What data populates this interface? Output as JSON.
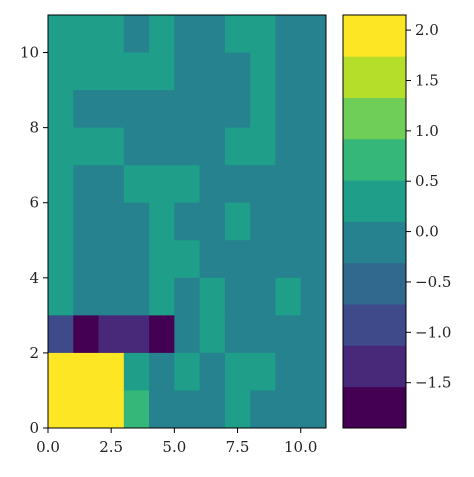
{
  "chart_data": {
    "type": "heatmap",
    "title": "",
    "xlabel": "",
    "ylabel": "",
    "x_range": [
      0,
      11
    ],
    "y_range": [
      0,
      11
    ],
    "x_ticks": [
      0.0,
      2.5,
      5.0,
      7.5,
      10.0
    ],
    "x_tick_labels": [
      "0.0",
      "2.5",
      "5.0",
      "7.5",
      "10.0"
    ],
    "y_ticks": [
      0,
      2,
      4,
      6,
      8,
      10
    ],
    "y_tick_labels": [
      "0",
      "2",
      "4",
      "6",
      "8",
      "10"
    ],
    "colorbar": {
      "min": -1.95,
      "max": 2.15,
      "bin_edges": [
        -1.95,
        -1.54,
        -1.13,
        -0.72,
        -0.31,
        0.1,
        0.51,
        0.92,
        1.33,
        1.74,
        2.15
      ],
      "bin_colors": [
        "#440154",
        "#482878",
        "#3e4a89",
        "#31688e",
        "#26828e",
        "#1f9e89",
        "#35b779",
        "#6ece58",
        "#b5de2b",
        "#fde725"
      ],
      "ticks": [
        2.0,
        1.5,
        1.0,
        0.5,
        0.0,
        -0.5,
        -1.0,
        -1.5
      ],
      "tick_labels": [
        "2.0",
        "1.5",
        "1.0",
        "0.5",
        "0.0",
        "−0.5",
        "−1.0",
        "−1.5"
      ]
    },
    "grid": false,
    "rows_top_to_bottom": [
      [
        0.3,
        0.3,
        0.3,
        0.0,
        0.3,
        0.0,
        0.0,
        0.3,
        0.3,
        0.0,
        0.0
      ],
      [
        0.3,
        0.3,
        0.3,
        0.3,
        0.3,
        0.0,
        0.0,
        0.0,
        0.3,
        0.0,
        0.0
      ],
      [
        0.3,
        0.0,
        0.0,
        0.0,
        0.0,
        0.0,
        0.0,
        0.0,
        0.3,
        0.0,
        0.0
      ],
      [
        0.3,
        0.3,
        0.3,
        0.0,
        0.0,
        0.0,
        0.0,
        0.3,
        0.3,
        0.0,
        0.0
      ],
      [
        0.3,
        0.0,
        0.0,
        0.3,
        0.3,
        0.3,
        0.0,
        0.0,
        0.0,
        0.0,
        0.0
      ],
      [
        0.3,
        0.0,
        0.0,
        0.0,
        0.3,
        0.0,
        0.0,
        0.3,
        0.0,
        0.0,
        0.0
      ],
      [
        0.3,
        0.0,
        0.0,
        0.0,
        0.3,
        0.3,
        0.0,
        0.0,
        0.0,
        0.0,
        0.0
      ],
      [
        0.3,
        0.0,
        0.0,
        0.0,
        0.3,
        0.0,
        0.3,
        0.0,
        0.0,
        0.3,
        0.0
      ],
      [
        -0.9,
        -1.7,
        -1.3,
        -1.3,
        -1.7,
        0.0,
        0.3,
        0.0,
        0.0,
        0.0,
        0.0
      ],
      [
        2.1,
        2.1,
        2.1,
        0.3,
        -0.3,
        0.3,
        0.0,
        0.3,
        0.3,
        0.0,
        0.0
      ],
      [
        2.1,
        2.1,
        2.1,
        0.7,
        0.0,
        0.0,
        0.0,
        0.3,
        0.0,
        0.0,
        0.0
      ]
    ]
  }
}
